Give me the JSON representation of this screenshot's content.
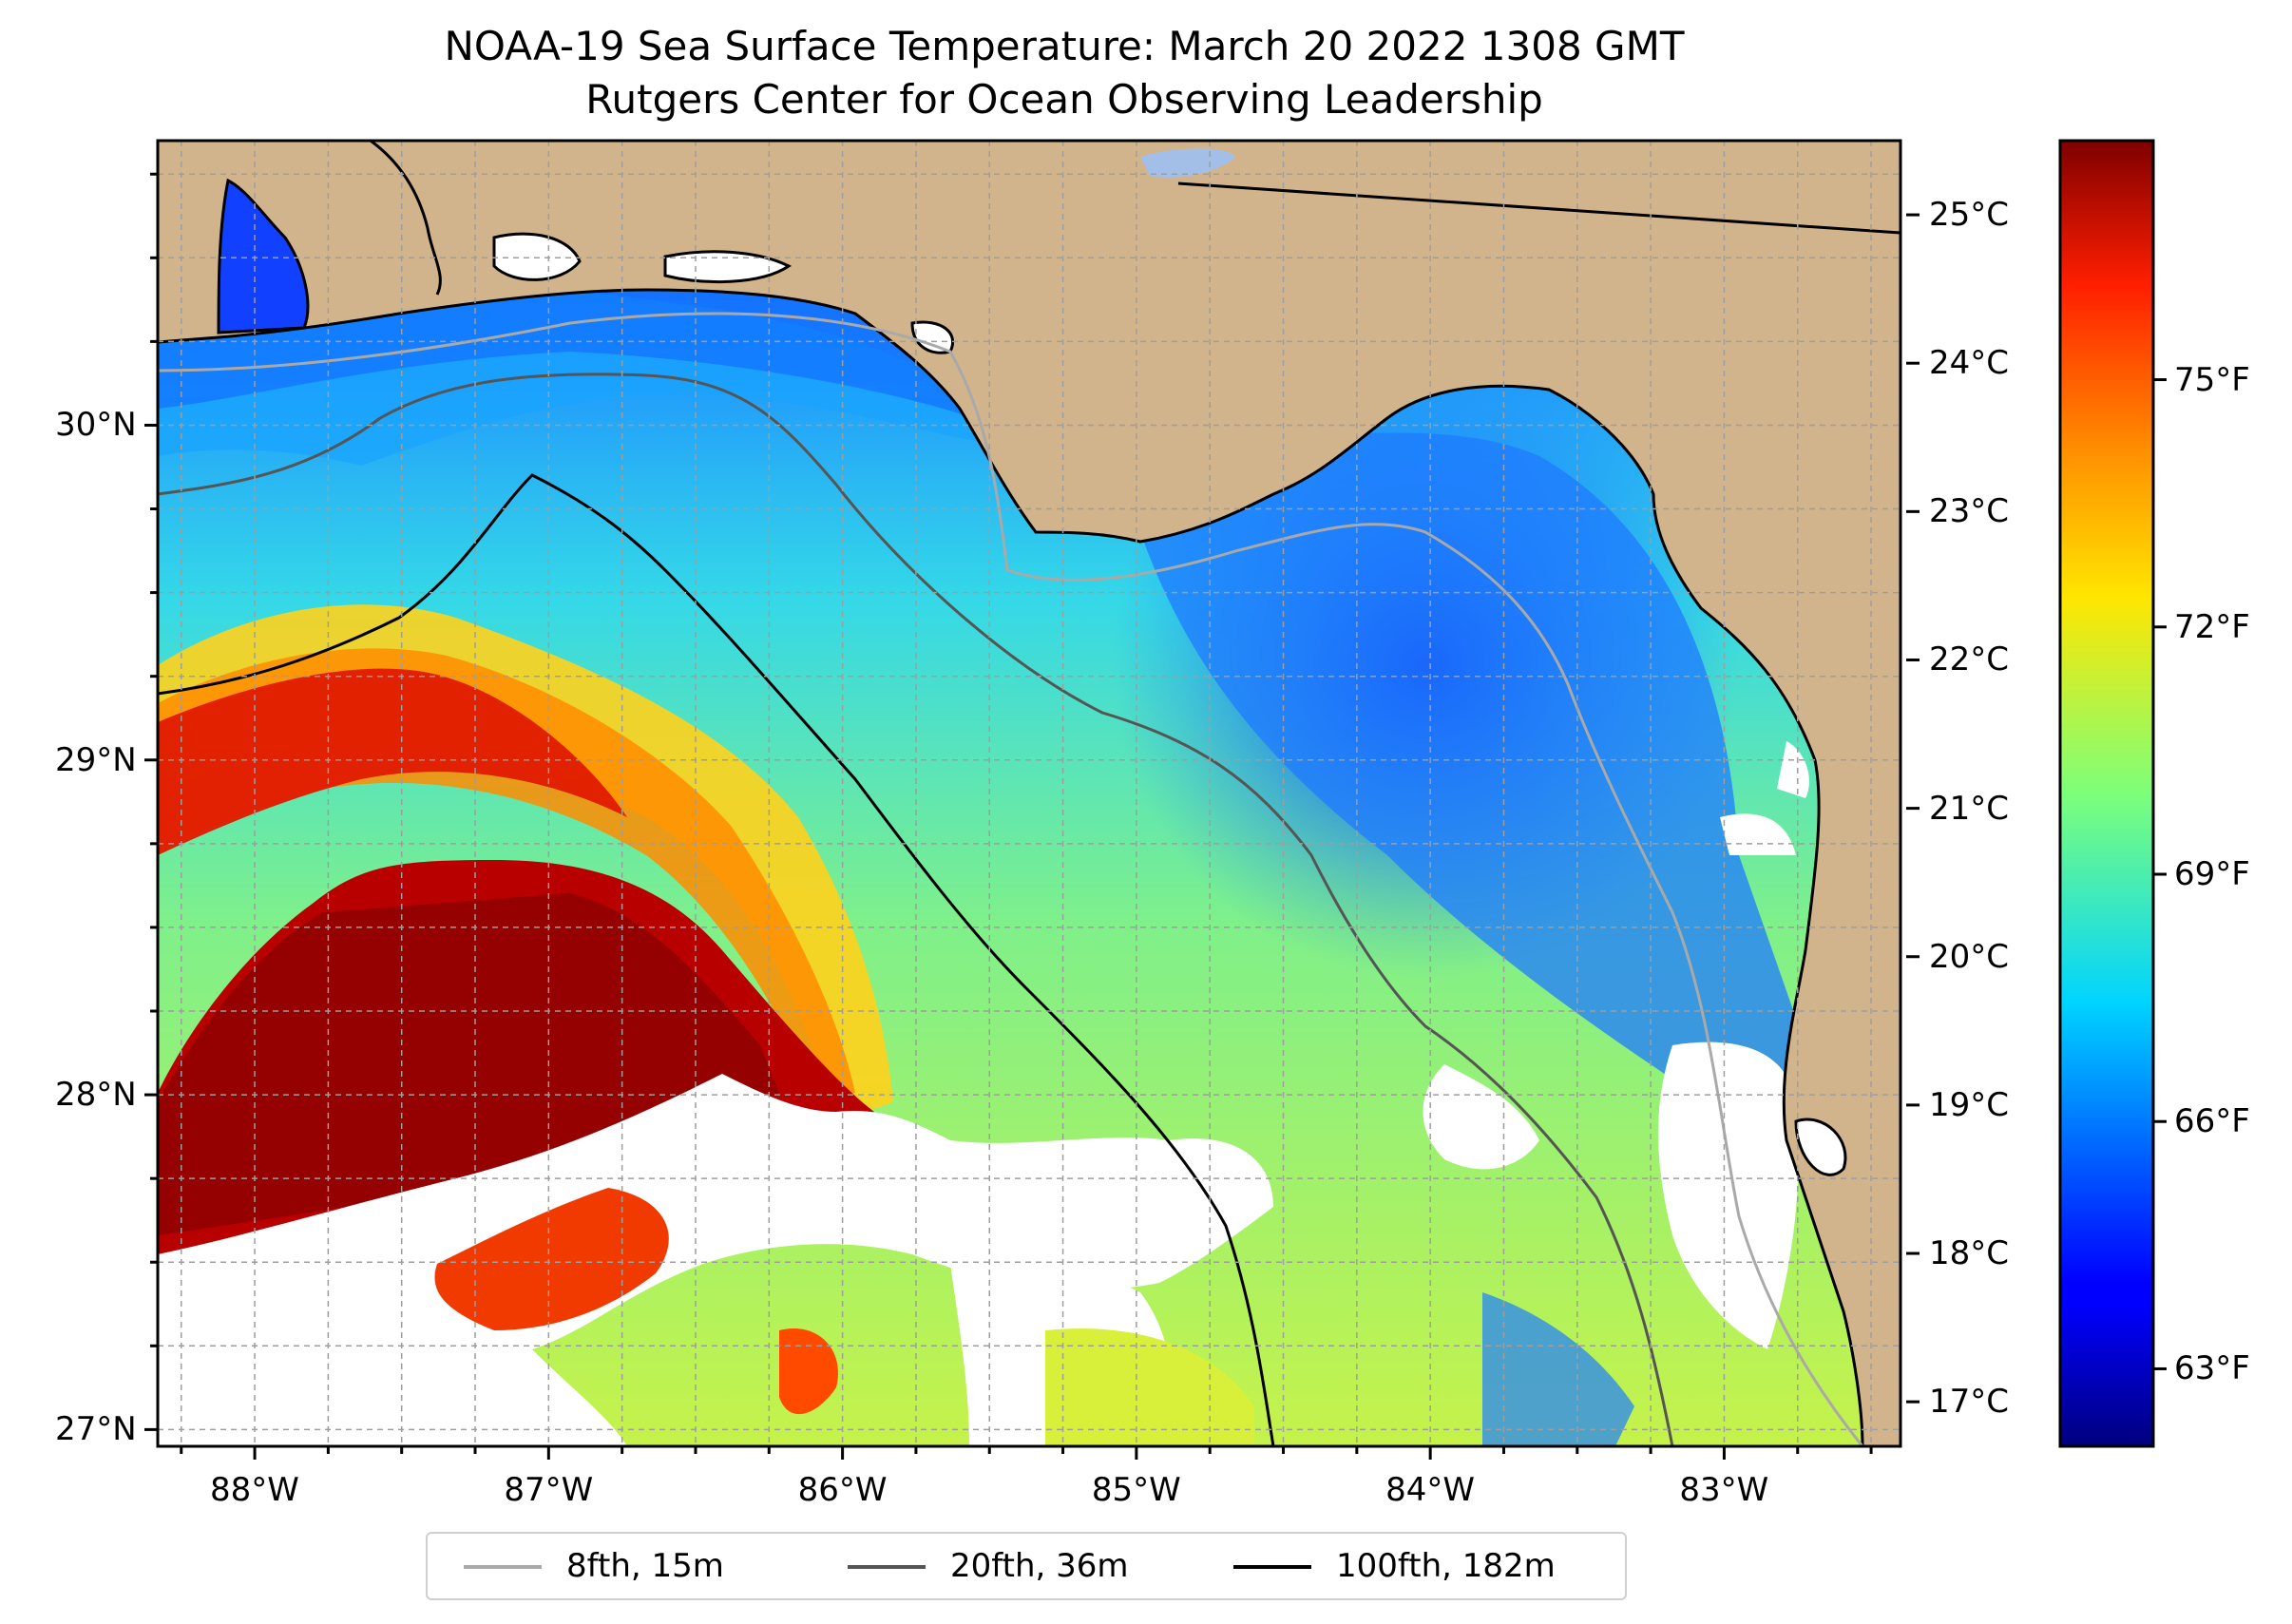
{
  "title": "NOAA-19 Sea Surface Temperature: March 20 2022 1308 GMT",
  "subtitle": "Rutgers Center for Ocean Observing Leadership",
  "map": {
    "extent": {
      "lon_min": -88.33,
      "lon_max": -82.4,
      "lat_min": 26.95,
      "lat_max": 30.85
    },
    "land_color": "#d2b48c",
    "cloud_mask_color": "#ffffff",
    "gridlines": true,
    "lon_ticks": [
      {
        "value": -88,
        "label": "88°W"
      },
      {
        "value": -87,
        "label": "87°W"
      },
      {
        "value": -86,
        "label": "86°W"
      },
      {
        "value": -85,
        "label": "85°W"
      },
      {
        "value": -84,
        "label": "84°W"
      },
      {
        "value": -83,
        "label": "83°W"
      }
    ],
    "lat_ticks": [
      {
        "value": 27,
        "label": "27°N"
      },
      {
        "value": 28,
        "label": "28°N"
      },
      {
        "value": 29,
        "label": "29°N"
      },
      {
        "value": 30,
        "label": "30°N"
      }
    ]
  },
  "colorbar": {
    "colormap": "jet",
    "celsius_ticks": [
      {
        "value": 17,
        "label": "17°C"
      },
      {
        "value": 18,
        "label": "18°C"
      },
      {
        "value": 19,
        "label": "19°C"
      },
      {
        "value": 20,
        "label": "20°C"
      },
      {
        "value": 21,
        "label": "21°C"
      },
      {
        "value": 22,
        "label": "22°C"
      },
      {
        "value": 23,
        "label": "23°C"
      },
      {
        "value": 24,
        "label": "24°C"
      },
      {
        "value": 25,
        "label": "25°C"
      }
    ],
    "fahrenheit_ticks": [
      {
        "value": 63,
        "label": "63°F"
      },
      {
        "value": 66,
        "label": "66°F"
      },
      {
        "value": 69,
        "label": "69°F"
      },
      {
        "value": 72,
        "label": "72°F"
      },
      {
        "value": 75,
        "label": "75°F"
      }
    ],
    "range_celsius": [
      16.7,
      25.5
    ]
  },
  "legend": {
    "location": "bottom-center",
    "entries": [
      {
        "label": "8fth, 15m",
        "color": "#a9a9a9"
      },
      {
        "label": "20fth, 36m",
        "color": "#555555"
      },
      {
        "label": "100fth, 182m",
        "color": "#000000"
      }
    ]
  }
}
